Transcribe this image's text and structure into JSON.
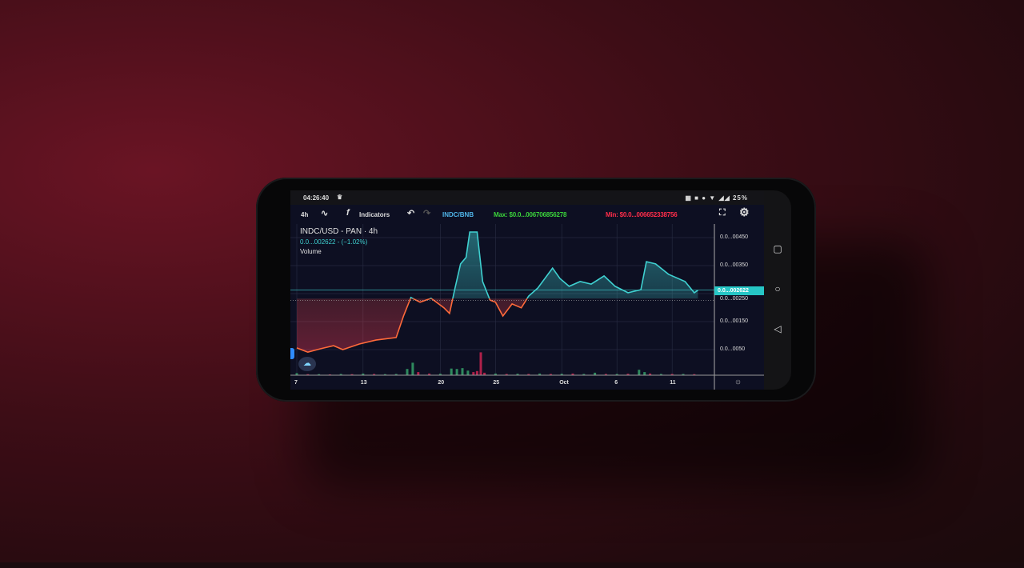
{
  "status_bar": {
    "time": "04:26:40",
    "battery": "25%",
    "icons": [
      "notification-icon",
      "image-icon",
      "dot-icon",
      "wifi-icon",
      "signal-icon",
      "signal-icon"
    ]
  },
  "toolbar": {
    "interval": "4h",
    "indicators_label": "Indicators",
    "compare_symbol": "INDC/BNB",
    "max_label": "Max: $0.0...006706856278",
    "min_label": "Min: $0.0...006652338756"
  },
  "legend": {
    "symbol": "INDC/USD - PAN · 4h",
    "price_change": "0.0...002622 - (−1.02%)",
    "volume_label": "Volume"
  },
  "colors": {
    "up": "#3fd0d0",
    "down": "#ff6a3a",
    "max": "#3bd23b",
    "min": "#ff2d4a",
    "vol_up": "#2e8a5e",
    "vol_down": "#b0204a"
  },
  "chart_data": {
    "type": "area",
    "baseline": 0.00232,
    "ylim": [
      0,
      0.0056
    ],
    "y_tick_labels": [
      {
        "value": 0.0045,
        "label": "0.0...00450"
      },
      {
        "value": 0.0035,
        "label": "0.0...00350"
      },
      {
        "value": 0.0025,
        "label": "0.0...00250"
      },
      {
        "value": 0.0015,
        "label": "0.0...00150"
      },
      {
        "value": 0.0005,
        "label": "0.0...0050"
      }
    ],
    "last_price_label": "0.0...002622",
    "last_price": 0.002622,
    "x_tick_labels": [
      {
        "date": "09-07 00",
        "label": "7"
      },
      {
        "date": "09-13 00",
        "label": "13"
      },
      {
        "date": "09-20 00",
        "label": "20"
      },
      {
        "date": "09-25 00",
        "label": "25"
      },
      {
        "date": "10-01 00",
        "label": "Oct"
      },
      {
        "date": "10-06 00",
        "label": "6"
      },
      {
        "date": "10-11 00",
        "label": "11"
      }
    ],
    "series": [
      {
        "x": [
          "09-07 00",
          "09-08 00",
          "09-09 04",
          "09-10 08",
          "09-11 04",
          "09-12 16",
          "09-14 04",
          "09-16 00",
          "09-16 16",
          "09-17 08",
          "09-18 04",
          "09-19 04",
          "09-20 08",
          "09-20 20",
          "09-21 08",
          "09-21 20",
          "09-22 08",
          "09-22 16",
          "09-23 08",
          "09-23 20",
          "09-24 12",
          "09-25 00",
          "09-25 16",
          "09-26 12",
          "09-27 08",
          "09-28 00",
          "09-28 20",
          "09-30 04",
          "09-30 20",
          "10-01 16",
          "10-02 16",
          "10-03 16",
          "10-04 20",
          "10-05 20",
          "10-07 00",
          "10-08 04",
          "10-08 16",
          "10-09 12",
          "10-10 16",
          "10-12 04",
          "10-13 00",
          "10-13 08"
        ],
        "y": [
          0.00056,
          0.00041,
          0.00053,
          0.00064,
          0.0005,
          0.0007,
          0.00084,
          0.00093,
          0.0017,
          0.00236,
          0.00219,
          0.00233,
          0.00199,
          0.00179,
          0.0027,
          0.00356,
          0.00379,
          0.0047,
          0.0047,
          0.00293,
          0.00227,
          0.00219,
          0.0017,
          0.00213,
          0.00199,
          0.00241,
          0.0027,
          0.00341,
          0.00304,
          0.00276,
          0.00293,
          0.00284,
          0.00313,
          0.00276,
          0.00253,
          0.00264,
          0.00364,
          0.00356,
          0.00319,
          0.00293,
          0.00253,
          0.00262
        ]
      }
    ],
    "volume": {
      "x": [
        "09-07 00",
        "09-08 00",
        "09-09 00",
        "09-10 00",
        "09-11 00",
        "09-12 00",
        "09-13 00",
        "09-14 00",
        "09-15 00",
        "09-16 00",
        "09-17 00",
        "09-17 12",
        "09-18 00",
        "09-19 00",
        "09-20 00",
        "09-21 00",
        "09-21 12",
        "09-22 00",
        "09-22 12",
        "09-23 00",
        "09-23 08",
        "09-23 16",
        "09-24 00",
        "09-25 00",
        "09-26 00",
        "09-27 00",
        "09-28 00",
        "09-29 00",
        "09-30 00",
        "10-01 00",
        "10-02 00",
        "10-03 00",
        "10-04 00",
        "10-05 00",
        "10-06 00",
        "10-07 00",
        "10-08 00",
        "10-08 12",
        "10-09 00",
        "10-10 00",
        "10-11 00",
        "10-12 00",
        "10-13 00"
      ],
      "values": [
        1,
        0.5,
        0.5,
        0.4,
        0.6,
        0.5,
        0.8,
        0.6,
        0.5,
        0.6,
        3,
        6,
        1.5,
        0.8,
        0.7,
        3.2,
        3,
        3.4,
        2.2,
        1.5,
        2,
        11,
        1.2,
        0.8,
        0.6,
        0.7,
        0.6,
        0.8,
        0.6,
        0.7,
        0.8,
        0.6,
        1.2,
        0.6,
        0.6,
        0.7,
        2.6,
        1.5,
        0.8,
        0.6,
        0.6,
        0.6,
        0.5
      ],
      "up": [
        true,
        false,
        true,
        false,
        true,
        false,
        true,
        false,
        true,
        true,
        true,
        true,
        false,
        false,
        true,
        true,
        true,
        true,
        true,
        false,
        false,
        false,
        false,
        true,
        false,
        true,
        false,
        true,
        false,
        true,
        false,
        true,
        true,
        false,
        true,
        false,
        true,
        true,
        false,
        true,
        false,
        true,
        false
      ]
    }
  }
}
